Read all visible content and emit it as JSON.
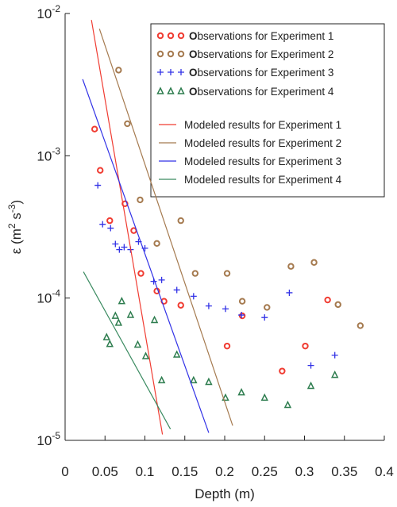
{
  "chart_data": {
    "type": "scatter",
    "x_label": "Depth (m)",
    "y_label": [
      "ε (m",
      "2",
      " s",
      "-3",
      ")"
    ],
    "log_y": true,
    "grid": false,
    "legend": "upper right",
    "xlim": [
      0,
      0.4
    ],
    "xticks": [
      0,
      0.05,
      0.1,
      0.15,
      0.2,
      0.25,
      0.3,
      0.35,
      0.4
    ],
    "ylim": [
      1e-05,
      0.01
    ],
    "yticks": [
      {
        "value": 0.01,
        "label": "10",
        "exponent": "-2"
      },
      {
        "value": 0.001,
        "label": "10",
        "exponent": "-3"
      },
      {
        "value": 0.0001,
        "label": "10",
        "exponent": "-4"
      },
      {
        "value": 1e-05,
        "label": "10",
        "exponent": "-5"
      }
    ],
    "series": [
      {
        "name": "Observations for Experiment 1",
        "style": "marker",
        "marker": "circle",
        "color": "#f03c32",
        "x": [
          0.037,
          0.044,
          0.056,
          0.075,
          0.086,
          0.095,
          0.115,
          0.124,
          0.145,
          0.203,
          0.222,
          0.272,
          0.301,
          0.329
        ],
        "values": [
          0.00154,
          0.00079,
          0.00035,
          0.00046,
          0.000298,
          0.000149,
          0.000112,
          9.5e-05,
          8.9e-05,
          4.6e-05,
          7.5e-05,
          3.07e-05,
          4.6e-05,
          9.7e-05
        ]
      },
      {
        "name": "Observations for Experiment 2",
        "style": "marker",
        "marker": "circle",
        "color": "#a57a4f",
        "x": [
          0.067,
          0.078,
          0.094,
          0.115,
          0.145,
          0.163,
          0.203,
          0.222,
          0.253,
          0.283,
          0.312,
          0.342,
          0.37
        ],
        "values": [
          0.004,
          0.00168,
          0.00049,
          0.000242,
          0.00035,
          0.000149,
          0.000149,
          9.5e-05,
          8.6e-05,
          0.000167,
          0.000178,
          9e-05,
          6.4e-05
        ]
      },
      {
        "name": "Observations for Experiment 3",
        "style": "marker",
        "marker": "plus",
        "color": "#3232e6",
        "x": [
          0.041,
          0.047,
          0.057,
          0.063,
          0.068,
          0.074,
          0.082,
          0.092,
          0.1,
          0.111,
          0.121,
          0.14,
          0.161,
          0.18,
          0.201,
          0.221,
          0.25,
          0.281,
          0.308,
          0.338
        ],
        "values": [
          0.00062,
          0.00033,
          0.00031,
          0.00024,
          0.000219,
          0.000228,
          0.000219,
          0.000249,
          0.000224,
          0.000131,
          0.000134,
          0.000114,
          0.000103,
          8.8e-05,
          8.4e-05,
          7.6e-05,
          7.3e-05,
          0.000109,
          3.36e-05,
          3.97e-05
        ]
      },
      {
        "name": "Observations for Experiment 4",
        "style": "marker",
        "marker": "triangle",
        "color": "#2e7d4f",
        "x": [
          0.052,
          0.056,
          0.063,
          0.067,
          0.071,
          0.082,
          0.091,
          0.101,
          0.112,
          0.121,
          0.14,
          0.161,
          0.18,
          0.201,
          0.221,
          0.25,
          0.279,
          0.308,
          0.338
        ],
        "values": [
          5.3e-05,
          4.75e-05,
          7.5e-05,
          6.7e-05,
          9.5e-05,
          7.6e-05,
          4.7e-05,
          3.9e-05,
          7e-05,
          2.64e-05,
          4e-05,
          2.64e-05,
          2.57e-05,
          1.99e-05,
          2.17e-05,
          1.99e-05,
          1.77e-05,
          2.41e-05,
          2.88e-05
        ]
      },
      {
        "name": "Modeled results  for Experiment 1",
        "style": "line",
        "color": "#f03c32",
        "x": [
          0.033,
          0.122
        ],
        "values": [
          0.009,
          1.1e-05
        ]
      },
      {
        "name": "Modeled results  for Experiment 2",
        "style": "line",
        "color": "#a57a4f",
        "x": [
          0.043,
          0.21
        ],
        "values": [
          0.0078,
          1.27e-05
        ]
      },
      {
        "name": "Modeled results  for Experiment 3",
        "style": "line",
        "color": "#3232e6",
        "x": [
          0.022,
          0.18
        ],
        "values": [
          0.00345,
          1.13e-05
        ]
      },
      {
        "name": "Modeled results  for Experiment 4",
        "style": "line",
        "color": "#3a8a60",
        "x": [
          0.023,
          0.132
        ],
        "values": [
          0.000153,
          1.2e-05
        ]
      }
    ]
  }
}
